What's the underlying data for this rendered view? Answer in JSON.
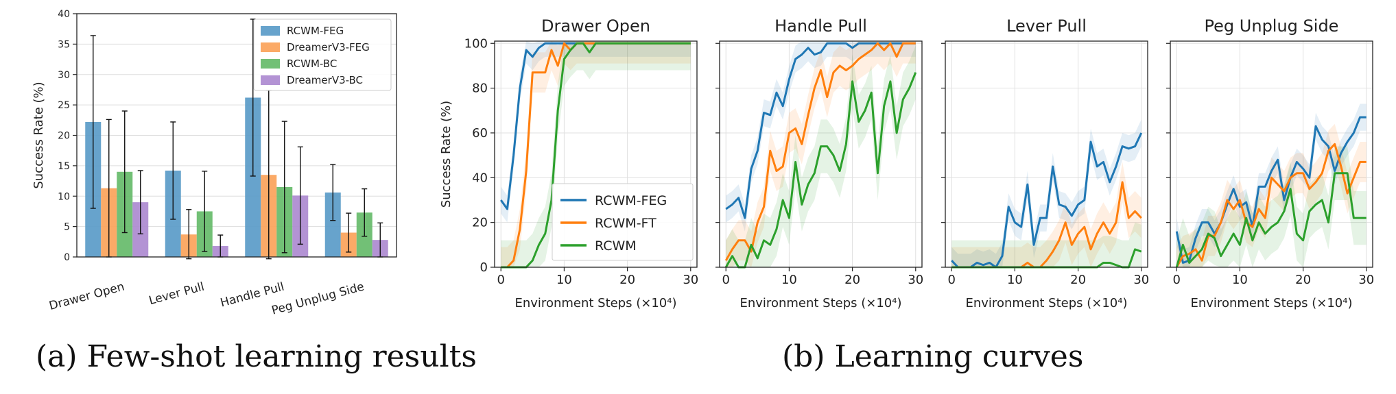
{
  "captions": {
    "a": "(a) Few-shot learning results",
    "b": "(b) Learning curves"
  },
  "colors": {
    "RCWM-FEG": "#5a9bc8",
    "DreamerV3-FEG": "#fba35a",
    "RCWM-BC": "#66bb6a",
    "DreamerV3-BC": "#ac8ad0",
    "line_RCWM-FEG": "#1f77b4",
    "line_RCWM-FT": "#ff7f0e",
    "line_RCWM": "#2ca02c"
  },
  "chart_data": [
    {
      "type": "bar",
      "title": "",
      "xlabel": "",
      "ylabel": "Success Rate (%)",
      "ylim": [
        0,
        40
      ],
      "yticks": [
        "0",
        "5",
        "10",
        "15",
        "20",
        "25",
        "30",
        "35",
        "40"
      ],
      "categories": [
        "Drawer Open",
        "Lever Pull",
        "Handle Pull",
        "Peg Unplug Side"
      ],
      "legend": {
        "position": "top-right"
      },
      "grid": true,
      "series": [
        {
          "name": "RCWM-FEG",
          "values": [
            22.2,
            14.2,
            26.2,
            10.6
          ],
          "errors": [
            14.2,
            8.0,
            12.9,
            4.6
          ]
        },
        {
          "name": "DreamerV3-FEG",
          "values": [
            11.3,
            3.7,
            13.5,
            4.0
          ],
          "errors": [
            11.3,
            4.1,
            13.9,
            3.2
          ]
        },
        {
          "name": "RCWM-BC",
          "values": [
            14.0,
            7.5,
            11.5,
            7.3
          ],
          "errors": [
            10.0,
            6.6,
            10.8,
            3.9
          ]
        },
        {
          "name": "DreamerV3-BC",
          "values": [
            9.0,
            1.8,
            10.1,
            2.8
          ],
          "errors": [
            5.2,
            1.8,
            8.0,
            2.8
          ]
        }
      ]
    },
    {
      "type": "line",
      "xlabel": "Environment Steps (×10⁴)",
      "ylabel": "Success Rate (%)",
      "xlim": [
        -1,
        31
      ],
      "ylim": [
        0,
        101
      ],
      "xticks": [
        "0",
        "10",
        "20",
        "30"
      ],
      "yticks": [
        "0",
        "20",
        "40",
        "60",
        "80",
        "100"
      ],
      "grid": true,
      "legend": {
        "position": "lower-right",
        "entries": [
          "RCWM-FEG",
          "RCWM-FT",
          "RCWM"
        ]
      },
      "x": [
        0,
        1,
        2,
        3,
        4,
        5,
        6,
        7,
        8,
        9,
        10,
        11,
        12,
        13,
        14,
        15,
        16,
        17,
        18,
        19,
        20,
        21,
        22,
        23,
        24,
        25,
        26,
        27,
        28,
        29,
        30
      ],
      "panels": [
        {
          "title": "Drawer Open",
          "series": [
            {
              "name": "RCWM-FEG",
              "values": [
                30,
                26,
                50,
                80,
                97,
                94,
                98,
                100,
                100,
                100,
                100,
                100,
                100,
                100,
                100,
                100,
                100,
                100,
                100,
                100,
                100,
                100,
                100,
                100,
                100,
                100,
                100,
                100,
                100,
                100,
                100
              ]
            },
            {
              "name": "RCWM-FT",
              "values": [
                0,
                0,
                3,
                17,
                43,
                87,
                87,
                87,
                97,
                90,
                100,
                97,
                100,
                100,
                100,
                100,
                100,
                100,
                100,
                100,
                100,
                100,
                100,
                100,
                100,
                100,
                100,
                100,
                100,
                100,
                100
              ]
            },
            {
              "name": "RCWM",
              "values": [
                0,
                0,
                0,
                0,
                0,
                3,
                10,
                15,
                30,
                70,
                93,
                97,
                100,
                100,
                96,
                100,
                100,
                100,
                100,
                100,
                100,
                100,
                100,
                100,
                100,
                100,
                100,
                100,
                100,
                100,
                100
              ]
            }
          ]
        },
        {
          "title": "Handle Pull",
          "series": [
            {
              "name": "RCWM-FEG",
              "values": [
                26,
                28,
                31,
                22,
                44,
                52,
                69,
                68,
                78,
                72,
                84,
                93,
                95,
                98,
                95,
                96,
                100,
                100,
                100,
                100,
                98,
                100,
                100,
                100,
                100,
                100,
                100,
                100,
                100,
                100,
                100
              ]
            },
            {
              "name": "RCWM-FT",
              "values": [
                3,
                8,
                12,
                12,
                7,
                20,
                27,
                52,
                43,
                45,
                60,
                62,
                55,
                68,
                80,
                88,
                76,
                87,
                90,
                88,
                90,
                93,
                95,
                97,
                100,
                97,
                100,
                94,
                100,
                100,
                100
              ]
            },
            {
              "name": "RCWM",
              "values": [
                0,
                5,
                0,
                0,
                10,
                4,
                12,
                10,
                17,
                30,
                22,
                47,
                28,
                37,
                42,
                54,
                54,
                50,
                43,
                55,
                83,
                65,
                70,
                78,
                42,
                72,
                83,
                60,
                75,
                80,
                87
              ]
            }
          ]
        },
        {
          "title": "Lever Pull",
          "series": [
            {
              "name": "RCWM-FEG",
              "values": [
                3,
                0,
                0,
                0,
                2,
                1,
                2,
                0,
                5,
                27,
                20,
                18,
                37,
                10,
                22,
                22,
                45,
                28,
                27,
                23,
                28,
                30,
                56,
                45,
                47,
                38,
                45,
                54,
                53,
                54,
                60
              ]
            },
            {
              "name": "RCWM-FT",
              "values": [
                0,
                0,
                0,
                0,
                0,
                0,
                0,
                0,
                0,
                0,
                0,
                0,
                2,
                0,
                0,
                3,
                7,
                12,
                20,
                10,
                15,
                18,
                8,
                15,
                20,
                15,
                20,
                38,
                22,
                25,
                22
              ]
            },
            {
              "name": "RCWM",
              "values": [
                0,
                0,
                0,
                0,
                0,
                0,
                0,
                0,
                0,
                0,
                0,
                0,
                0,
                0,
                0,
                0,
                0,
                0,
                0,
                0,
                0,
                0,
                0,
                0,
                2,
                2,
                1,
                0,
                0,
                8,
                7
              ]
            }
          ]
        },
        {
          "title": "Peg Unplug Side",
          "series": [
            {
              "name": "RCWM-FEG",
              "values": [
                16,
                2,
                3,
                13,
                20,
                20,
                15,
                20,
                28,
                35,
                27,
                29,
                18,
                36,
                36,
                43,
                48,
                30,
                40,
                47,
                44,
                40,
                63,
                57,
                54,
                43,
                51,
                56,
                60,
                67,
                67
              ]
            },
            {
              "name": "RCWM-FT",
              "values": [
                0,
                5,
                6,
                8,
                3,
                14,
                14,
                20,
                30,
                26,
                30,
                20,
                18,
                26,
                22,
                40,
                37,
                34,
                40,
                42,
                42,
                35,
                38,
                42,
                52,
                55,
                45,
                33,
                40,
                47,
                47
              ]
            },
            {
              "name": "RCWM",
              "values": [
                0,
                10,
                2,
                5,
                8,
                15,
                13,
                5,
                10,
                15,
                10,
                22,
                12,
                20,
                15,
                18,
                20,
                25,
                35,
                15,
                12,
                25,
                28,
                30,
                20,
                42,
                42,
                42,
                22,
                22,
                22
              ]
            }
          ]
        }
      ]
    }
  ]
}
